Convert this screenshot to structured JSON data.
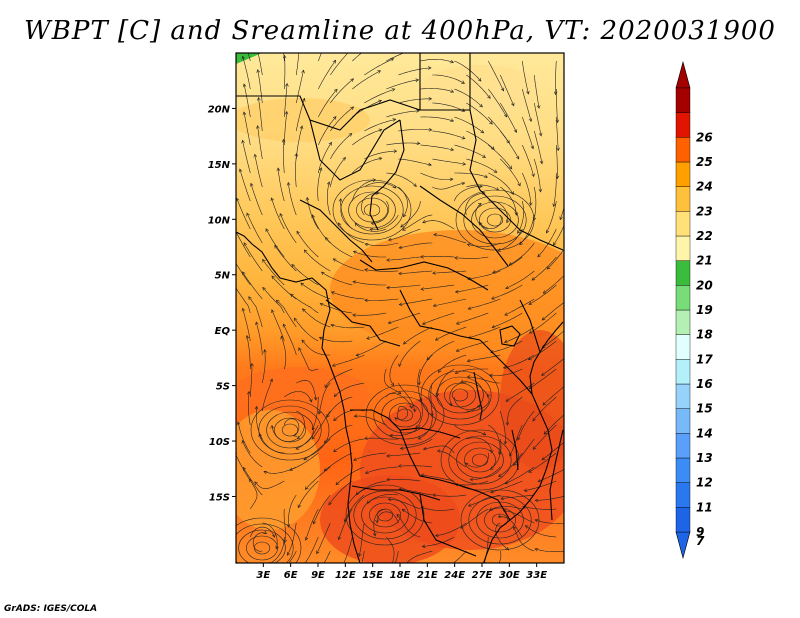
{
  "title": "WBPT [C] and Sreamline at 400hPa, VT: 2020031900",
  "credit": "GrADS: IGES/COLA",
  "map": {
    "lat_range": [
      -21,
      25
    ],
    "lon_range": [
      0,
      36
    ],
    "lat_ticks": [
      {
        "value": 20,
        "label": "20N"
      },
      {
        "value": 15,
        "label": "15N"
      },
      {
        "value": 10,
        "label": "10N"
      },
      {
        "value": 5,
        "label": "5N"
      },
      {
        "value": 0,
        "label": "EQ"
      },
      {
        "value": -5,
        "label": "5S"
      },
      {
        "value": -10,
        "label": "10S"
      },
      {
        "value": -15,
        "label": "15S"
      }
    ],
    "lon_ticks": [
      {
        "value": 3,
        "label": "3E"
      },
      {
        "value": 6,
        "label": "6E"
      },
      {
        "value": 9,
        "label": "9E"
      },
      {
        "value": 12,
        "label": "12E"
      },
      {
        "value": 15,
        "label": "15E"
      },
      {
        "value": 18,
        "label": "18E"
      },
      {
        "value": 21,
        "label": "21E"
      },
      {
        "value": 24,
        "label": "24E"
      },
      {
        "value": 27,
        "label": "27E"
      },
      {
        "value": 30,
        "label": "30E"
      },
      {
        "value": 33,
        "label": "33E"
      }
    ]
  },
  "colorbar": {
    "levels": [
      "7",
      "9",
      "11",
      "12",
      "13",
      "14",
      "15",
      "16",
      "17",
      "18",
      "19",
      "20",
      "21",
      "22",
      "23",
      "24",
      "25",
      "26"
    ],
    "colors": [
      "#1e64e6",
      "#2a78f0",
      "#3c8cf5",
      "#5aa0fa",
      "#78b9fa",
      "#96d2fa",
      "#b4f0fa",
      "#e1ffff",
      "#b4f0b4",
      "#78dc78",
      "#3cbc3c",
      "#fff5aa",
      "#ffe178",
      "#ffc03c",
      "#ffa000",
      "#ff6000",
      "#e11400",
      "#a50000"
    ]
  }
}
